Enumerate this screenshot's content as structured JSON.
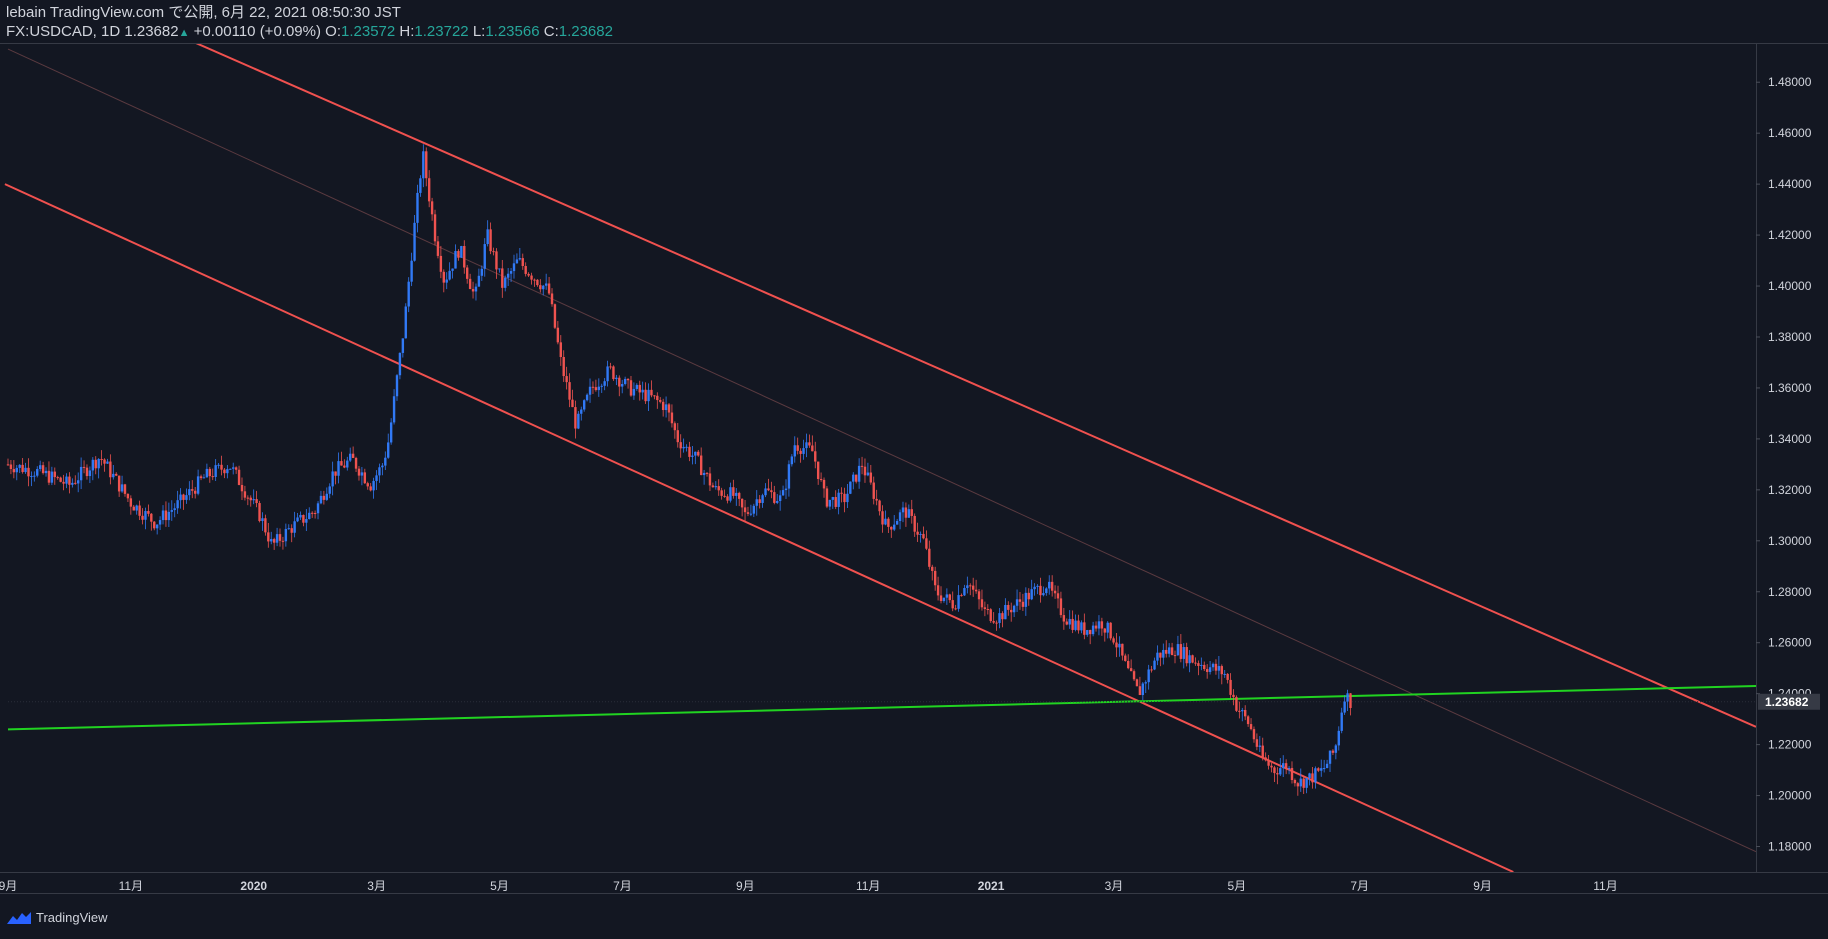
{
  "header": {
    "line1": "lebain TradingView.com で公開, 6月 22, 2021 08:50:30 JST",
    "symbol": "FX:USDCAD, 1D",
    "last": "1.23682",
    "arrow": "▲",
    "change": "+0.00110 (+0.09%)",
    "o_label": "O:",
    "o_value": "1.23572",
    "h_label": "H:",
    "h_value": "1.23722",
    "l_label": "L:",
    "l_value": "1.23566",
    "c_label": "C:",
    "c_value": "1.23682"
  },
  "footer": {
    "brand": "TradingView"
  },
  "colors": {
    "background": "#131722",
    "up": "#3179f5",
    "down": "#ef5350",
    "channel": "#f0514f",
    "support": "#21d321",
    "grid_text": "#d1d4dc",
    "price_tag_bg": "#363a45"
  },
  "chart_data": {
    "type": "candlestick",
    "title": "FX:USDCAD, 1D",
    "ylim": [
      1.17,
      1.495
    ],
    "y_ticks": [
      "1.48000",
      "1.46000",
      "1.44000",
      "1.42000",
      "1.40000",
      "1.38000",
      "1.36000",
      "1.34000",
      "1.32000",
      "1.30000",
      "1.28000",
      "1.26000",
      "1.24000",
      "1.22000",
      "1.20000",
      "1.18000"
    ],
    "current_price": "1.23682",
    "x_ticks": [
      {
        "label": "9月",
        "month": 0
      },
      {
        "label": "11月",
        "month": 2
      },
      {
        "label": "2020",
        "month": 4
      },
      {
        "label": "3月",
        "month": 6
      },
      {
        "label": "5月",
        "month": 8
      },
      {
        "label": "7月",
        "month": 10
      },
      {
        "label": "9月",
        "month": 12
      },
      {
        "label": "11月",
        "month": 14
      },
      {
        "label": "2021",
        "month": 16
      },
      {
        "label": "3月",
        "month": 18
      },
      {
        "label": "5月",
        "month": 20
      },
      {
        "label": "7月",
        "month": 22
      },
      {
        "label": "9月",
        "month": 24
      },
      {
        "label": "11月",
        "month": 26
      }
    ],
    "x_range_months": [
      0,
      28.45
    ],
    "closes_monthly": [
      {
        "m": 0,
        "v": 1.33
      },
      {
        "m": 0.5,
        "v": 1.327
      },
      {
        "m": 1.0,
        "v": 1.322
      },
      {
        "m": 1.5,
        "v": 1.333
      },
      {
        "m": 2.0,
        "v": 1.315
      },
      {
        "m": 2.4,
        "v": 1.307
      },
      {
        "m": 2.8,
        "v": 1.315
      },
      {
        "m": 3.2,
        "v": 1.325
      },
      {
        "m": 3.6,
        "v": 1.33
      },
      {
        "m": 3.9,
        "v": 1.318
      },
      {
        "m": 4.1,
        "v": 1.31
      },
      {
        "m": 4.3,
        "v": 1.298
      },
      {
        "m": 4.6,
        "v": 1.305
      },
      {
        "m": 5.0,
        "v": 1.312
      },
      {
        "m": 5.3,
        "v": 1.327
      },
      {
        "m": 5.6,
        "v": 1.332
      },
      {
        "m": 5.9,
        "v": 1.322
      },
      {
        "m": 6.1,
        "v": 1.33
      },
      {
        "m": 6.2,
        "v": 1.34
      },
      {
        "m": 6.3,
        "v": 1.358
      },
      {
        "m": 6.45,
        "v": 1.385
      },
      {
        "m": 6.6,
        "v": 1.42
      },
      {
        "m": 6.75,
        "v": 1.452
      },
      {
        "m": 6.95,
        "v": 1.42
      },
      {
        "m": 7.1,
        "v": 1.402
      },
      {
        "m": 7.35,
        "v": 1.415
      },
      {
        "m": 7.6,
        "v": 1.395
      },
      {
        "m": 7.8,
        "v": 1.42
      },
      {
        "m": 8.05,
        "v": 1.4
      },
      {
        "m": 8.3,
        "v": 1.41
      },
      {
        "m": 8.5,
        "v": 1.405
      },
      {
        "m": 8.8,
        "v": 1.398
      },
      {
        "m": 9.0,
        "v": 1.37
      },
      {
        "m": 9.25,
        "v": 1.345
      },
      {
        "m": 9.5,
        "v": 1.36
      },
      {
        "m": 9.8,
        "v": 1.367
      },
      {
        "m": 10.1,
        "v": 1.36
      },
      {
        "m": 10.4,
        "v": 1.357
      },
      {
        "m": 10.7,
        "v": 1.353
      },
      {
        "m": 10.9,
        "v": 1.34
      },
      {
        "m": 11.2,
        "v": 1.332
      },
      {
        "m": 11.5,
        "v": 1.32
      },
      {
        "m": 11.8,
        "v": 1.318
      },
      {
        "m": 12.0,
        "v": 1.31
      },
      {
        "m": 12.3,
        "v": 1.32
      },
      {
        "m": 12.6,
        "v": 1.316
      },
      {
        "m": 12.8,
        "v": 1.338
      },
      {
        "m": 13.1,
        "v": 1.335
      },
      {
        "m": 13.3,
        "v": 1.316
      },
      {
        "m": 13.6,
        "v": 1.316
      },
      {
        "m": 13.9,
        "v": 1.33
      },
      {
        "m": 14.1,
        "v": 1.318
      },
      {
        "m": 14.3,
        "v": 1.305
      },
      {
        "m": 14.6,
        "v": 1.312
      },
      {
        "m": 14.9,
        "v": 1.3
      },
      {
        "m": 15.1,
        "v": 1.28
      },
      {
        "m": 15.4,
        "v": 1.275
      },
      {
        "m": 15.6,
        "v": 1.285
      },
      {
        "m": 15.9,
        "v": 1.272
      },
      {
        "m": 16.1,
        "v": 1.27
      },
      {
        "m": 16.4,
        "v": 1.275
      },
      {
        "m": 16.7,
        "v": 1.28
      },
      {
        "m": 16.9,
        "v": 1.283
      },
      {
        "m": 17.2,
        "v": 1.27
      },
      {
        "m": 17.5,
        "v": 1.265
      },
      {
        "m": 17.8,
        "v": 1.268
      },
      {
        "m": 18.0,
        "v": 1.262
      },
      {
        "m": 18.2,
        "v": 1.25
      },
      {
        "m": 18.4,
        "v": 1.24
      },
      {
        "m": 18.7,
        "v": 1.255
      },
      {
        "m": 19.0,
        "v": 1.258
      },
      {
        "m": 19.3,
        "v": 1.253
      },
      {
        "m": 19.6,
        "v": 1.25
      },
      {
        "m": 19.8,
        "v": 1.248
      },
      {
        "m": 20.0,
        "v": 1.235
      },
      {
        "m": 20.2,
        "v": 1.228
      },
      {
        "m": 20.4,
        "v": 1.215
      },
      {
        "m": 20.6,
        "v": 1.21
      },
      {
        "m": 20.8,
        "v": 1.212
      },
      {
        "m": 21.0,
        "v": 1.205
      },
      {
        "m": 21.2,
        "v": 1.207
      },
      {
        "m": 21.4,
        "v": 1.21
      },
      {
        "m": 21.6,
        "v": 1.218
      },
      {
        "m": 21.75,
        "v": 1.24
      },
      {
        "m": 21.85,
        "v": 1.237
      }
    ],
    "lines": [
      {
        "name": "channel-upper",
        "color": "#f0514f",
        "from": {
          "m": -0.5,
          "v": 1.533
        },
        "to": {
          "m": 28.45,
          "v": 1.227
        }
      },
      {
        "name": "channel-lower",
        "color": "#f0514f",
        "from": {
          "m": -0.05,
          "v": 1.44
        },
        "to": {
          "m": 24.5,
          "v": 1.17
        }
      },
      {
        "name": "channel-mid",
        "color": "#5a3a40",
        "from": {
          "m": 0,
          "v": 1.493
        },
        "to": {
          "m": 28.45,
          "v": 1.178
        }
      },
      {
        "name": "support",
        "color": "#21d321",
        "from": {
          "m": 0,
          "v": 1.226
        },
        "to": {
          "m": 28.45,
          "v": 1.243
        }
      }
    ]
  }
}
